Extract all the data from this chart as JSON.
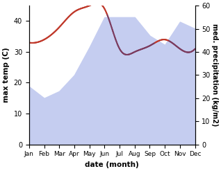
{
  "months": [
    "Jan",
    "Feb",
    "Mar",
    "Apr",
    "May",
    "Jun",
    "Jul",
    "Aug",
    "Sep",
    "Oct",
    "Nov",
    "Dec"
  ],
  "month_positions": [
    0,
    1,
    2,
    3,
    4,
    5,
    6,
    7,
    8,
    9,
    10,
    11
  ],
  "temperature": [
    33,
    34,
    38,
    43,
    45,
    44,
    31,
    30,
    32,
    34,
    31,
    31
  ],
  "precipitation": [
    25,
    20,
    23,
    30,
    42,
    55,
    55,
    55,
    47,
    43,
    53,
    50
  ],
  "temp_color_above": "#c0392b",
  "temp_color_below": "#7b3b5e",
  "precip_color": "#c5cdf0",
  "ylabel_left": "max temp (C)",
  "ylabel_right": "med. precipitation (kg/m2)",
  "xlabel": "date (month)",
  "ylim_left": [
    0,
    45
  ],
  "ylim_right": [
    0,
    60
  ],
  "yticks_left": [
    0,
    10,
    20,
    30,
    40
  ],
  "yticks_right": [
    0,
    10,
    20,
    30,
    40,
    50,
    60
  ],
  "background_color": "#ffffff",
  "fig_width": 3.18,
  "fig_height": 2.47,
  "dpi": 100
}
